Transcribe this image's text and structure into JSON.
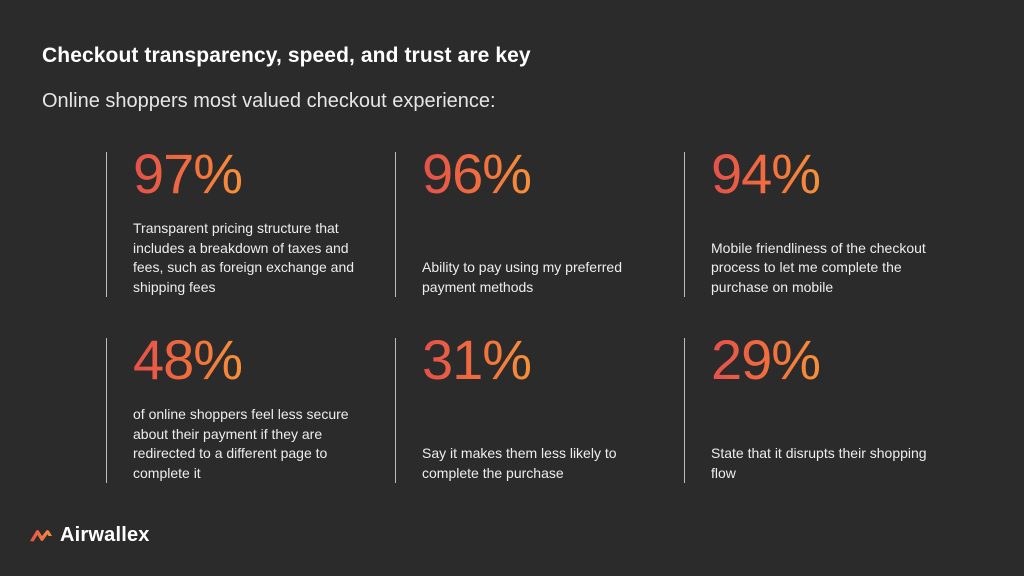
{
  "slide": {
    "title": "Checkout transparency, speed, and trust are key",
    "subtitle": "Online shoppers most valued checkout experience:"
  },
  "stats": [
    {
      "value": "97%",
      "text": "Transparent pricing structure that includes a breakdown of taxes and fees, such as foreign exchange and shipping fees"
    },
    {
      "value": "96%",
      "text": "Ability to pay using my preferred payment methods"
    },
    {
      "value": "94%",
      "text": "Mobile friendliness of the checkout process to let me complete the purchase on mobile"
    },
    {
      "value": "48%",
      "text": "of online shoppers feel less secure about their payment if they are redirected to a different page to complete it"
    },
    {
      "value": "31%",
      "text": "Say it makes them less likely to complete the purchase"
    },
    {
      "value": "29%",
      "text": "State that it disrupts their shopping flow"
    }
  ],
  "brand": {
    "name": "Airwallex",
    "logo_icon": "airwallex-logo-icon",
    "accent_start": "#e4504b",
    "accent_end": "#f7913a",
    "background": "#2b2b2b"
  }
}
